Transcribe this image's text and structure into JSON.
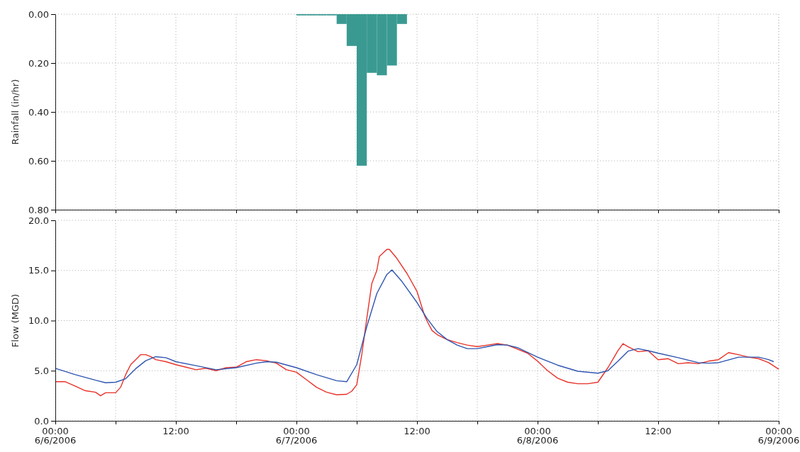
{
  "chart_data": [
    {
      "type": "bar",
      "ylabel": "Rainfall (in/hr)",
      "x": [
        "2006-06-07T00:30",
        "2006-06-07T01:30",
        "2006-06-07T02:30",
        "2006-06-07T03:30",
        "2006-06-07T04:30",
        "2006-06-07T05:30",
        "2006-06-07T06:30",
        "2006-06-07T07:30",
        "2006-06-07T08:30",
        "2006-06-07T09:30",
        "2006-06-07T10:30"
      ],
      "values": [
        0.005,
        0.005,
        0.005,
        0.005,
        0.04,
        0.13,
        0.62,
        0.24,
        0.25,
        0.21,
        0.04
      ],
      "color": "#3a9a92",
      "xlim": [
        "2006-06-06T00:00",
        "2006-06-09T00:00"
      ],
      "xticks": [
        {
          "value": "2006-06-06T00:00",
          "label": null
        },
        {
          "value": "2006-06-06T06:00",
          "label": null
        },
        {
          "value": "2006-06-06T12:00",
          "label": null
        },
        {
          "value": "2006-06-06T18:00",
          "label": null
        },
        {
          "value": "2006-06-07T00:00",
          "label": null
        },
        {
          "value": "2006-06-07T06:00",
          "label": null
        },
        {
          "value": "2006-06-07T12:00",
          "label": null
        },
        {
          "value": "2006-06-07T18:00",
          "label": null
        },
        {
          "value": "2006-06-08T00:00",
          "label": null
        },
        {
          "value": "2006-06-08T06:00",
          "label": null
        },
        {
          "value": "2006-06-08T12:00",
          "label": null
        },
        {
          "value": "2006-06-08T18:00",
          "label": null
        },
        {
          "value": "2006-06-09T00:00",
          "label": null
        }
      ],
      "ylim": [
        0.8,
        0
      ],
      "yticks": [
        {
          "value": 0,
          "label": "0.00"
        },
        {
          "value": 0.2,
          "label": "0.20"
        },
        {
          "value": 0.4,
          "label": "0.40"
        },
        {
          "value": 0.6,
          "label": "0.60"
        },
        {
          "value": 0.8,
          "label": "0.80"
        }
      ],
      "grid": true,
      "tick_labels": "y"
    },
    {
      "type": "line",
      "ylabel": "Flow (MGD)",
      "series": [
        {
          "color": "#e8322a",
          "x": [
            "2006-06-06T00:00",
            "2006-06-06T01:00",
            "2006-06-06T02:00",
            "2006-06-06T03:00",
            "2006-06-06T04:00",
            "2006-06-06T04:30",
            "2006-06-06T05:00",
            "2006-06-06T06:00",
            "2006-06-06T06:30",
            "2006-06-06T07:00",
            "2006-06-06T07:30",
            "2006-06-06T08:00",
            "2006-06-06T08:30",
            "2006-06-06T09:00",
            "2006-06-06T09:30",
            "2006-06-06T10:00",
            "2006-06-06T11:00",
            "2006-06-06T12:00",
            "2006-06-06T13:00",
            "2006-06-06T14:00",
            "2006-06-06T15:00",
            "2006-06-06T16:00",
            "2006-06-06T17:00",
            "2006-06-06T18:00",
            "2006-06-06T19:00",
            "2006-06-06T20:00",
            "2006-06-06T21:00",
            "2006-06-06T22:00",
            "2006-06-06T23:00",
            "2006-06-07T00:00",
            "2006-06-07T01:00",
            "2006-06-07T02:00",
            "2006-06-07T03:00",
            "2006-06-07T04:00",
            "2006-06-07T05:00",
            "2006-06-07T05:30",
            "2006-06-07T06:00",
            "2006-06-07T06:30",
            "2006-06-07T07:00",
            "2006-06-07T07:30",
            "2006-06-07T08:00",
            "2006-06-07T08:15",
            "2006-06-07T09:00",
            "2006-06-07T09:15",
            "2006-06-07T10:00",
            "2006-06-07T11:00",
            "2006-06-07T12:00",
            "2006-06-07T12:45",
            "2006-06-07T13:00",
            "2006-06-07T13:30",
            "2006-06-07T14:00",
            "2006-06-07T15:00",
            "2006-06-07T16:00",
            "2006-06-07T17:00",
            "2006-06-07T18:00",
            "2006-06-07T19:00",
            "2006-06-07T20:00",
            "2006-06-07T21:00",
            "2006-06-07T22:00",
            "2006-06-07T23:00",
            "2006-06-08T00:00",
            "2006-06-08T01:00",
            "2006-06-08T02:00",
            "2006-06-08T03:00",
            "2006-06-08T04:00",
            "2006-06-08T05:00",
            "2006-06-08T06:00",
            "2006-06-08T07:00",
            "2006-06-08T08:00",
            "2006-06-08T08:30",
            "2006-06-08T09:00",
            "2006-06-08T10:00",
            "2006-06-08T11:00",
            "2006-06-08T12:00",
            "2006-06-08T13:00",
            "2006-06-08T14:00",
            "2006-06-08T15:00",
            "2006-06-08T16:00",
            "2006-06-08T17:00",
            "2006-06-08T18:00",
            "2006-06-08T19:00",
            "2006-06-08T20:00",
            "2006-06-08T21:00",
            "2006-06-08T22:00",
            "2006-06-08T23:00",
            "2006-06-09T00:00"
          ],
          "values": [
            3.9,
            3.9,
            3.45,
            3.0,
            2.85,
            2.5,
            2.8,
            2.8,
            3.35,
            4.6,
            5.6,
            6.1,
            6.6,
            6.6,
            6.4,
            6.1,
            5.9,
            5.6,
            5.35,
            5.1,
            5.25,
            5.0,
            5.3,
            5.35,
            5.9,
            6.1,
            6.0,
            5.75,
            5.1,
            4.85,
            4.1,
            3.35,
            2.85,
            2.6,
            2.65,
            2.95,
            3.6,
            6.6,
            10.2,
            13.7,
            15.0,
            16.4,
            17.1,
            17.1,
            16.2,
            14.7,
            12.9,
            10.5,
            9.95,
            9.0,
            8.6,
            8.1,
            7.8,
            7.55,
            7.4,
            7.55,
            7.7,
            7.55,
            7.15,
            6.75,
            5.95,
            5.0,
            4.25,
            3.85,
            3.7,
            3.7,
            3.85,
            5.3,
            7.0,
            7.7,
            7.4,
            6.9,
            7.0,
            6.1,
            6.2,
            5.7,
            5.8,
            5.7,
            5.95,
            6.1,
            6.8,
            6.6,
            6.35,
            6.2,
            5.8,
            5.15
          ]
        },
        {
          "color": "#2f56b0",
          "x": [
            "2006-06-06T00:00",
            "2006-06-06T02:00",
            "2006-06-06T04:00",
            "2006-06-06T05:00",
            "2006-06-06T06:00",
            "2006-06-06T07:00",
            "2006-06-06T08:00",
            "2006-06-06T09:00",
            "2006-06-06T10:00",
            "2006-06-06T11:00",
            "2006-06-06T12:00",
            "2006-06-06T14:00",
            "2006-06-06T16:00",
            "2006-06-06T18:00",
            "2006-06-06T20:00",
            "2006-06-06T21:00",
            "2006-06-06T22:00",
            "2006-06-07T00:00",
            "2006-06-07T02:00",
            "2006-06-07T04:00",
            "2006-06-07T05:00",
            "2006-06-07T06:00",
            "2006-06-07T07:00",
            "2006-06-07T08:00",
            "2006-06-07T09:00",
            "2006-06-07T09:30",
            "2006-06-07T10:30",
            "2006-06-07T12:00",
            "2006-06-07T13:00",
            "2006-06-07T14:00",
            "2006-06-07T15:00",
            "2006-06-07T16:00",
            "2006-06-07T17:00",
            "2006-06-07T18:00",
            "2006-06-07T19:00",
            "2006-06-07T20:00",
            "2006-06-07T21:00",
            "2006-06-07T22:00",
            "2006-06-08T00:00",
            "2006-06-08T02:00",
            "2006-06-08T04:00",
            "2006-06-08T06:00",
            "2006-06-08T07:00",
            "2006-06-08T08:00",
            "2006-06-08T09:00",
            "2006-06-08T10:00",
            "2006-06-08T11:00",
            "2006-06-08T12:00",
            "2006-06-08T14:00",
            "2006-06-08T16:00",
            "2006-06-08T17:00",
            "2006-06-08T18:00",
            "2006-06-08T20:00",
            "2006-06-08T22:00",
            "2006-06-08T23:00",
            "2006-06-08T23:30"
          ],
          "values": [
            5.24,
            4.6,
            4.05,
            3.8,
            3.85,
            4.2,
            5.2,
            6.0,
            6.4,
            6.3,
            5.9,
            5.5,
            5.1,
            5.3,
            5.75,
            5.9,
            5.85,
            5.3,
            4.6,
            4.0,
            3.9,
            5.6,
            9.4,
            12.7,
            14.6,
            15.05,
            13.9,
            11.8,
            10.2,
            8.9,
            8.1,
            7.55,
            7.2,
            7.2,
            7.4,
            7.6,
            7.55,
            7.3,
            6.35,
            5.55,
            4.95,
            4.75,
            5.0,
            5.95,
            6.95,
            7.2,
            7.0,
            6.75,
            6.3,
            5.8,
            5.75,
            5.8,
            6.35,
            6.35,
            6.1,
            5.9
          ]
        }
      ],
      "xlim": [
        "2006-06-06T00:00",
        "2006-06-09T00:00"
      ],
      "xticks": [
        {
          "value": "2006-06-06T00:00",
          "label": "00:00\n6/6/2006"
        },
        {
          "value": "2006-06-06T06:00",
          "label": null
        },
        {
          "value": "2006-06-06T12:00",
          "label": "12:00"
        },
        {
          "value": "2006-06-06T18:00",
          "label": null
        },
        {
          "value": "2006-06-07T00:00",
          "label": "00:00\n6/7/2006"
        },
        {
          "value": "2006-06-07T06:00",
          "label": null
        },
        {
          "value": "2006-06-07T12:00",
          "label": "12:00"
        },
        {
          "value": "2006-06-07T18:00",
          "label": null
        },
        {
          "value": "2006-06-08T00:00",
          "label": "00:00\n6/8/2006"
        },
        {
          "value": "2006-06-08T06:00",
          "label": null
        },
        {
          "value": "2006-06-08T12:00",
          "label": "12:00"
        },
        {
          "value": "2006-06-08T18:00",
          "label": null
        },
        {
          "value": "2006-06-09T00:00",
          "label": "00:00\n6/9/2006"
        }
      ],
      "ylim": [
        0,
        20
      ],
      "yticks": [
        {
          "value": 0,
          "label": "0.0"
        },
        {
          "value": 5,
          "label": "5.0"
        },
        {
          "value": 10,
          "label": "10.0"
        },
        {
          "value": 15,
          "label": "15.0"
        },
        {
          "value": 20,
          "label": "20.0"
        }
      ],
      "grid": true,
      "line_style": "solid",
      "marker": "none"
    }
  ]
}
